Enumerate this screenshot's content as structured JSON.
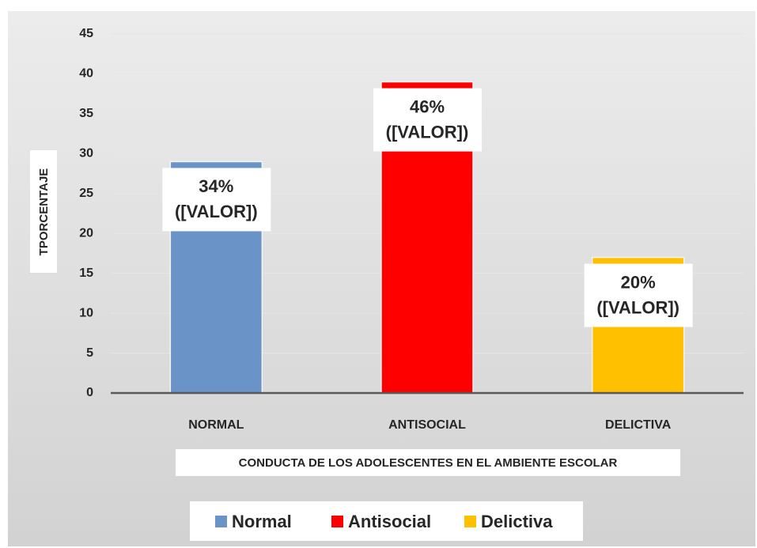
{
  "chart_data": {
    "type": "bar",
    "categories": [
      "NORMAL",
      "ANTISOCIAL",
      "DELICTIVA"
    ],
    "values": [
      29,
      39,
      17
    ],
    "colors": [
      "#6a93c8",
      "#ff0000",
      "#ffc000"
    ],
    "annotations": [
      [
        "34%",
        "([VALOR])"
      ],
      [
        "46%",
        "([VALOR])"
      ],
      [
        "20%",
        "([VALOR])"
      ]
    ],
    "legend": [
      "Normal",
      "Antisocial",
      "Delictiva"
    ],
    "y_label": "TPORCENTAJE",
    "x_label": "CONDUCTA DE LOS ADOLESCENTES EN EL AMBIENTE ESCOLAR",
    "ylim": [
      0,
      45
    ],
    "yticks": [
      0,
      5,
      10,
      15,
      20,
      25,
      30,
      35,
      40,
      45
    ],
    "grid": true
  }
}
